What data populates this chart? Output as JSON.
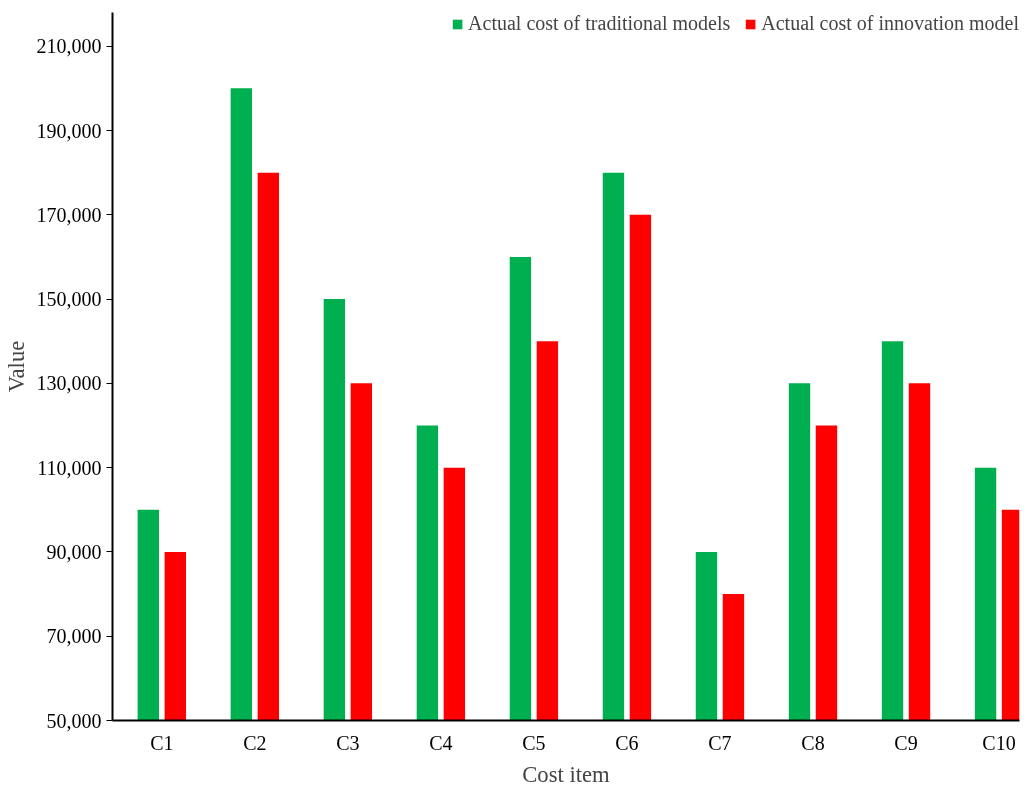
{
  "chart_data": {
    "type": "bar",
    "xlabel": "Cost item",
    "ylabel": "Value",
    "categories": [
      "C1",
      "C2",
      "C3",
      "C4",
      "C5",
      "C6",
      "C7",
      "C8",
      "C9",
      "C10"
    ],
    "series": [
      {
        "name": "Actual cost of traditional models",
        "color": "#00b050",
        "values": [
          100000,
          200000,
          150000,
          120000,
          160000,
          180000,
          90000,
          130000,
          140000,
          110000
        ]
      },
      {
        "name": "Actual cost of innovation model",
        "color": "#ff0000",
        "values": [
          90000,
          180000,
          130000,
          110000,
          140000,
          170000,
          80000,
          120000,
          130000,
          100000
        ]
      }
    ],
    "ylim": [
      50000,
      218000
    ],
    "yticks": [
      {
        "value": 50000,
        "label": "50,000"
      },
      {
        "value": 70000,
        "label": "70,000"
      },
      {
        "value": 90000,
        "label": "90,000"
      },
      {
        "value": 110000,
        "label": "110,000"
      },
      {
        "value": 130000,
        "label": "130,000"
      },
      {
        "value": 150000,
        "label": "150,000"
      },
      {
        "value": 170000,
        "label": "170,000"
      },
      {
        "value": 190000,
        "label": "190,000"
      },
      {
        "value": 210000,
        "label": "210,000"
      }
    ],
    "grid": false,
    "legend": "top right"
  }
}
